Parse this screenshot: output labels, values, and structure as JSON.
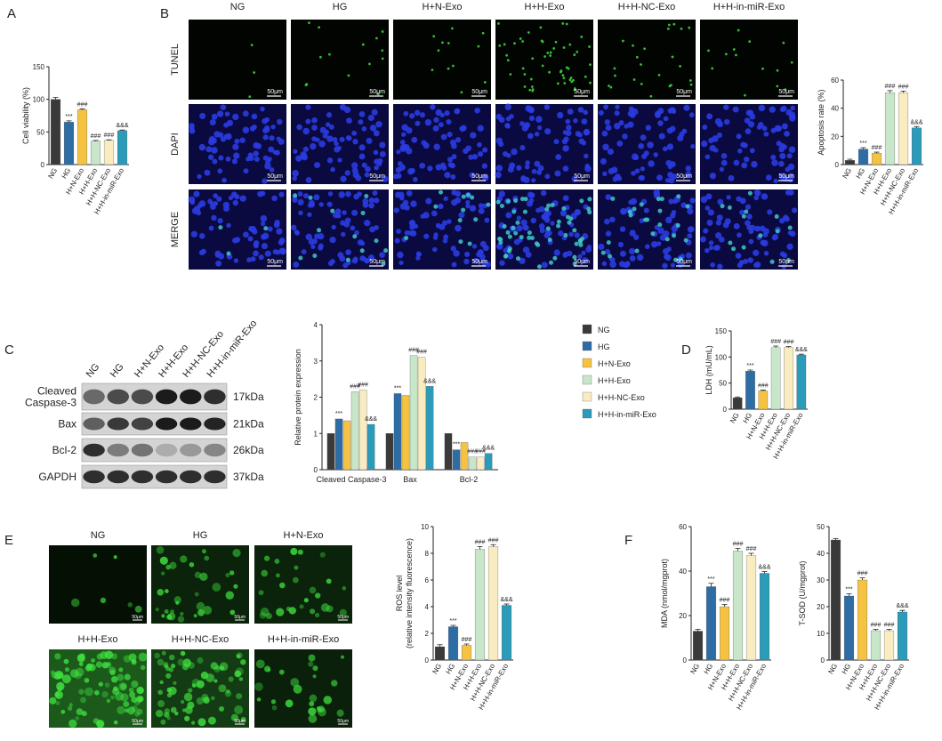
{
  "panel_labels": [
    "A",
    "B",
    "C",
    "D",
    "E",
    "F"
  ],
  "groups": [
    "NG",
    "HG",
    "H+N-Exo",
    "H+H-Exo",
    "H+H-NC-Exo",
    "H+H-in-miR-Exo"
  ],
  "tunel_images": {
    "rows": [
      "TUNEL",
      "DAPI",
      "MERGE"
    ],
    "scale_bar": "50μm"
  },
  "blot": {
    "proteins": [
      {
        "name": [
          "Cleaved",
          "Caspase-3"
        ],
        "size": "17kDa"
      },
      {
        "name": [
          "Bax"
        ],
        "size": "21kDa"
      },
      {
        "name": [
          "Bcl-2"
        ],
        "size": "26kDa"
      },
      {
        "name": [
          "GAPDH"
        ],
        "size": "37kDa"
      }
    ]
  },
  "ros_images": {
    "scale_bar": "50μm"
  },
  "chart_data": [
    {
      "type": "bar",
      "y_label": "Cell viability (%)",
      "categories": [
        "NG",
        "HG",
        "H+N-Exo",
        "H+H-Exo",
        "H+H-NC-Exo",
        "H+H-in-miR-Exo"
      ],
      "values": [
        100,
        65,
        84,
        36,
        37,
        52
      ],
      "errors": [
        3,
        2,
        1.5,
        1,
        1,
        1
      ],
      "annotations": [
        null,
        "***",
        "###",
        "###",
        "###",
        "&&&"
      ],
      "colors": [
        "#3a3a3a",
        "#2e6ca4",
        "#f5c242",
        "#c8e6c9",
        "#f9ecc0",
        "#2a9bb8"
      ],
      "ylim": [
        0,
        150
      ],
      "yticks": [
        0,
        50,
        100,
        150
      ]
    },
    {
      "type": "bar",
      "y_label": "Apoptosis rate (%)",
      "categories": [
        "NG",
        "HG",
        "H+N-Exo",
        "H+H-Exo",
        "H+H-NC-Exo",
        "H+H-in-miR-Exo"
      ],
      "values": [
        3,
        11,
        8,
        51,
        51,
        26
      ],
      "errors": [
        0.8,
        1,
        0.8,
        1.5,
        1.2,
        1
      ],
      "annotations": [
        null,
        "***",
        "###",
        "###",
        "###",
        "&&&"
      ],
      "colors": [
        "#3a3a3a",
        "#2e6ca4",
        "#f5c242",
        "#c8e6c9",
        "#f9ecc0",
        "#2a9bb8"
      ],
      "ylim": [
        0,
        60
      ],
      "yticks": [
        0,
        20,
        40,
        60
      ]
    },
    {
      "type": "grouped_bar",
      "y_label": "Relative protein expression",
      "categories": [
        "Cleaved Caspase-3",
        "Bax",
        "Bcl-2"
      ],
      "series": [
        {
          "name": "NG",
          "color": "#3a3a3a",
          "values": [
            1.0,
            1.0,
            1.0
          ],
          "annotations": [
            null,
            null,
            null
          ]
        },
        {
          "name": "HG",
          "color": "#2e6ca4",
          "values": [
            1.4,
            2.1,
            0.55
          ],
          "annotations": [
            "***",
            "***",
            "***"
          ]
        },
        {
          "name": "H+N-Exo",
          "color": "#f5c242",
          "values": [
            1.35,
            2.05,
            0.75
          ],
          "annotations": [
            null,
            null,
            null
          ]
        },
        {
          "name": "H+H-Exo",
          "color": "#c8e6c9",
          "values": [
            2.15,
            3.15,
            0.35
          ],
          "annotations": [
            "###",
            "###",
            "###"
          ]
        },
        {
          "name": "H+H-NC-Exo",
          "color": "#f9ecc0",
          "values": [
            2.2,
            3.1,
            0.35
          ],
          "annotations": [
            "###",
            "###",
            "###"
          ]
        },
        {
          "name": "H+H-in-miR-Exo",
          "color": "#2a9bb8",
          "values": [
            1.25,
            2.3,
            0.45
          ],
          "annotations": [
            "&&&",
            "&&&",
            "&&&"
          ]
        }
      ],
      "ylim": [
        0,
        4
      ],
      "yticks": [
        0,
        1,
        2,
        3,
        4
      ]
    },
    {
      "type": "bar",
      "y_label": "LDH (mU/mL)",
      "categories": [
        "NG",
        "HG",
        "H+N-Exo",
        "H+H-Exo",
        "H+H-NC-Exo",
        "H+H-in-miR-Exo"
      ],
      "values": [
        22,
        73,
        35,
        118,
        118,
        104
      ],
      "errors": [
        1.5,
        2,
        1.5,
        3,
        2,
        1.5
      ],
      "annotations": [
        null,
        "***",
        "###",
        "###",
        "###",
        "&&&"
      ],
      "colors": [
        "#3a3a3a",
        "#2e6ca4",
        "#f5c242",
        "#c8e6c9",
        "#f9ecc0",
        "#2a9bb8"
      ],
      "ylim": [
        0,
        150
      ],
      "yticks": [
        0,
        50,
        100,
        150
      ]
    },
    {
      "type": "bar",
      "y_label": [
        "ROS level",
        "(relative intensity fluorescence)"
      ],
      "categories": [
        "NG",
        "HG",
        "H+N-Exo",
        "H+H-Exo",
        "H+H-NC-Exo",
        "H+H-in-miR-Exo"
      ],
      "values": [
        1.0,
        2.5,
        1.1,
        8.3,
        8.5,
        4.1
      ],
      "errors": [
        0.15,
        0.1,
        0.1,
        0.2,
        0.15,
        0.1
      ],
      "annotations": [
        null,
        "***",
        "###",
        "###",
        "###",
        "&&&"
      ],
      "colors": [
        "#3a3a3a",
        "#2e6ca4",
        "#f5c242",
        "#c8e6c9",
        "#f9ecc0",
        "#2a9bb8"
      ],
      "ylim": [
        0,
        10
      ],
      "yticks": [
        0,
        2,
        4,
        6,
        8,
        10
      ]
    },
    {
      "type": "bar",
      "y_label": "MDA (nmol/mgprot)",
      "categories": [
        "NG",
        "HG",
        "H+N-Exo",
        "H+H-Exo",
        "H+H-NC-Exo",
        "H+H-in-miR-Exo"
      ],
      "values": [
        13,
        33,
        24,
        49,
        47,
        39
      ],
      "errors": [
        0.8,
        1.5,
        1,
        1.2,
        1,
        0.8
      ],
      "annotations": [
        null,
        "***",
        "###",
        "###",
        "###",
        "&&&"
      ],
      "colors": [
        "#3a3a3a",
        "#2e6ca4",
        "#f5c242",
        "#c8e6c9",
        "#f9ecc0",
        "#2a9bb8"
      ],
      "ylim": [
        0,
        60
      ],
      "yticks": [
        0,
        20,
        40,
        60
      ]
    },
    {
      "type": "bar",
      "y_label": "T-SOD (U/mgprot)",
      "categories": [
        "NG",
        "HG",
        "H+N-Exo",
        "H+H-Exo",
        "H+H-NC-Exo",
        "H+H-in-miR-Exo"
      ],
      "values": [
        45,
        24,
        30,
        11,
        11,
        18
      ],
      "errors": [
        0.5,
        0.8,
        0.8,
        0.5,
        0.5,
        0.6
      ],
      "annotations": [
        null,
        "***",
        "###",
        "###",
        "###",
        "&&&"
      ],
      "colors": [
        "#3a3a3a",
        "#2e6ca4",
        "#f5c242",
        "#c8e6c9",
        "#f9ecc0",
        "#2a9bb8"
      ],
      "ylim": [
        0,
        50
      ],
      "yticks": [
        0,
        10,
        20,
        30,
        40,
        50
      ]
    }
  ]
}
